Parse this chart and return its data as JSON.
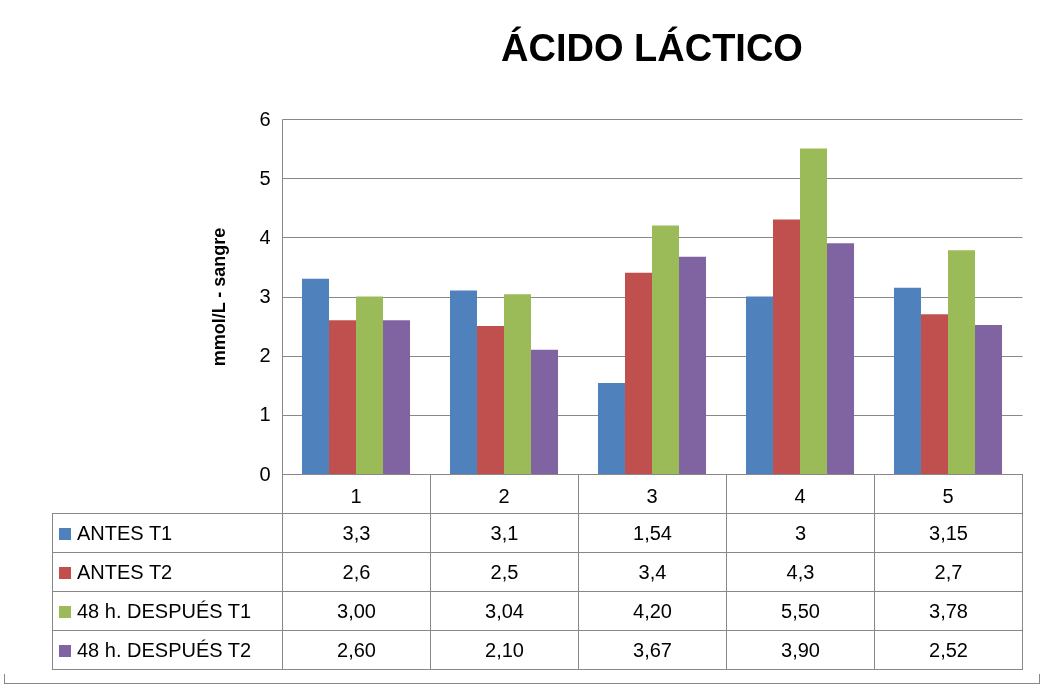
{
  "chart_data": {
    "type": "bar",
    "title": "ÁCIDO LÁCTICO",
    "ylabel": "mmol/L - sangre",
    "categories": [
      "1",
      "2",
      "3",
      "4",
      "5"
    ],
    "ylim": [
      0,
      6
    ],
    "yticks": [
      0,
      1,
      2,
      3,
      4,
      5,
      6
    ],
    "grid": "y",
    "legend": "bottom",
    "series": [
      {
        "name": "ANTES T1",
        "color": "#4f81bd",
        "values": [
          3.3,
          3.1,
          1.54,
          3,
          3.15
        ],
        "value_labels": [
          "3,3",
          "3,1",
          "1,54",
          "3",
          "3,15"
        ]
      },
      {
        "name": "ANTES T2",
        "color": "#c0504d",
        "values": [
          2.6,
          2.5,
          3.4,
          4.3,
          2.7
        ],
        "value_labels": [
          "2,6",
          "2,5",
          "3,4",
          "4,3",
          "2,7"
        ]
      },
      {
        "name": "48 h. DESPUÉS T1",
        "color": "#9bbb59",
        "values": [
          3.0,
          3.04,
          4.2,
          5.5,
          3.78
        ],
        "value_labels": [
          "3,00",
          "3,04",
          "4,20",
          "5,50",
          "3,78"
        ]
      },
      {
        "name": "48 h. DESPUÉS T2",
        "color": "#8064a2",
        "values": [
          2.6,
          2.1,
          3.67,
          3.9,
          2.52
        ],
        "value_labels": [
          "2,60",
          "2,10",
          "3,67",
          "3,90",
          "2,52"
        ]
      }
    ]
  }
}
